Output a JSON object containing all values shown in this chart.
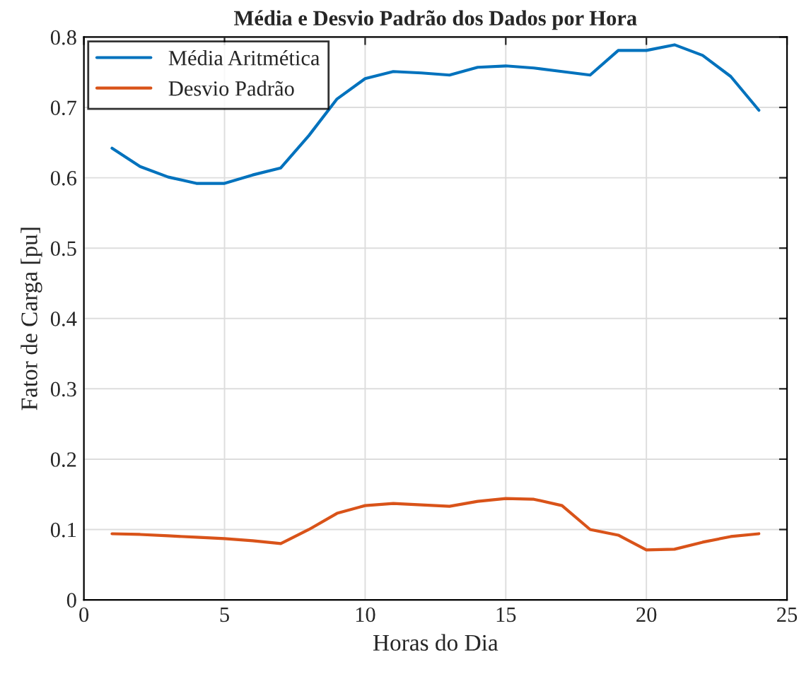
{
  "chart_data": {
    "type": "line",
    "title": "Média e Desvio Padrão dos Dados por Hora",
    "xlabel": "Horas do Dia",
    "ylabel": "Fator de Carga [pu]",
    "x": [
      1,
      2,
      3,
      4,
      5,
      6,
      7,
      8,
      9,
      10,
      11,
      12,
      13,
      14,
      15,
      16,
      17,
      18,
      19,
      20,
      21,
      22,
      23,
      24
    ],
    "series": [
      {
        "name": "Média Aritmética",
        "color": "#0072bd",
        "values": [
          0.642,
          0.616,
          0.601,
          0.592,
          0.592,
          0.604,
          0.614,
          0.66,
          0.712,
          0.741,
          0.751,
          0.749,
          0.746,
          0.757,
          0.759,
          0.756,
          0.751,
          0.746,
          0.781,
          0.781,
          0.789,
          0.774,
          0.744,
          0.696
        ]
      },
      {
        "name": "Desvio Padrão",
        "color": "#d95319",
        "values": [
          0.094,
          0.093,
          0.091,
          0.089,
          0.087,
          0.084,
          0.08,
          0.1,
          0.123,
          0.134,
          0.137,
          0.135,
          0.133,
          0.14,
          0.144,
          0.143,
          0.134,
          0.1,
          0.092,
          0.071,
          0.072,
          0.082,
          0.09,
          0.094
        ]
      }
    ],
    "xlim": [
      0,
      25
    ],
    "xticks": [
      0,
      5,
      10,
      15,
      20,
      25
    ],
    "ylim": [
      0,
      0.8
    ],
    "yticks": [
      0,
      0.1,
      0.2,
      0.3,
      0.4,
      0.5,
      0.6,
      0.7,
      0.8
    ],
    "grid": true,
    "legend": "top left",
    "marker": "none",
    "line_style": "solid"
  }
}
